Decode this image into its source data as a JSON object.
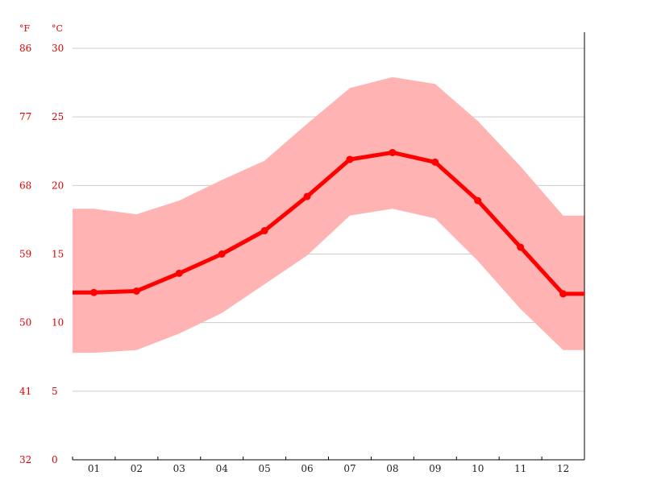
{
  "chart_data": {
    "type": "line",
    "title": "",
    "xlabel": "",
    "ylabel": "",
    "categories": [
      "01",
      "02",
      "03",
      "04",
      "05",
      "06",
      "07",
      "08",
      "09",
      "10",
      "11",
      "12"
    ],
    "series": [
      {
        "values": [
          12.2,
          12.3,
          13.6,
          15.0,
          16.7,
          19.2,
          21.9,
          22.4,
          21.7,
          18.9,
          15.5,
          12.1
        ]
      }
    ],
    "band": {
      "low": [
        7.8,
        8.0,
        9.2,
        10.7,
        12.8,
        14.9,
        17.8,
        18.3,
        17.6,
        14.5,
        11.0,
        8.0
      ],
      "high": [
        18.3,
        17.9,
        18.9,
        20.4,
        21.8,
        24.5,
        27.1,
        27.9,
        27.4,
        24.7,
        21.4,
        17.8
      ]
    },
    "ylim": [
      0,
      30
    ],
    "y_ticks_c": [
      "0",
      "5",
      "10",
      "15",
      "20",
      "25",
      "30"
    ],
    "y_ticks_f": [
      "32",
      "41",
      "50",
      "59",
      "68",
      "77",
      "86"
    ],
    "unit_f": "°F",
    "unit_c": "°C",
    "grid": true,
    "colors": {
      "line": "#ff0000",
      "band": "#ffb3b3",
      "grid": "#cccccc",
      "axis": "#000000",
      "label": "#e00000"
    }
  }
}
